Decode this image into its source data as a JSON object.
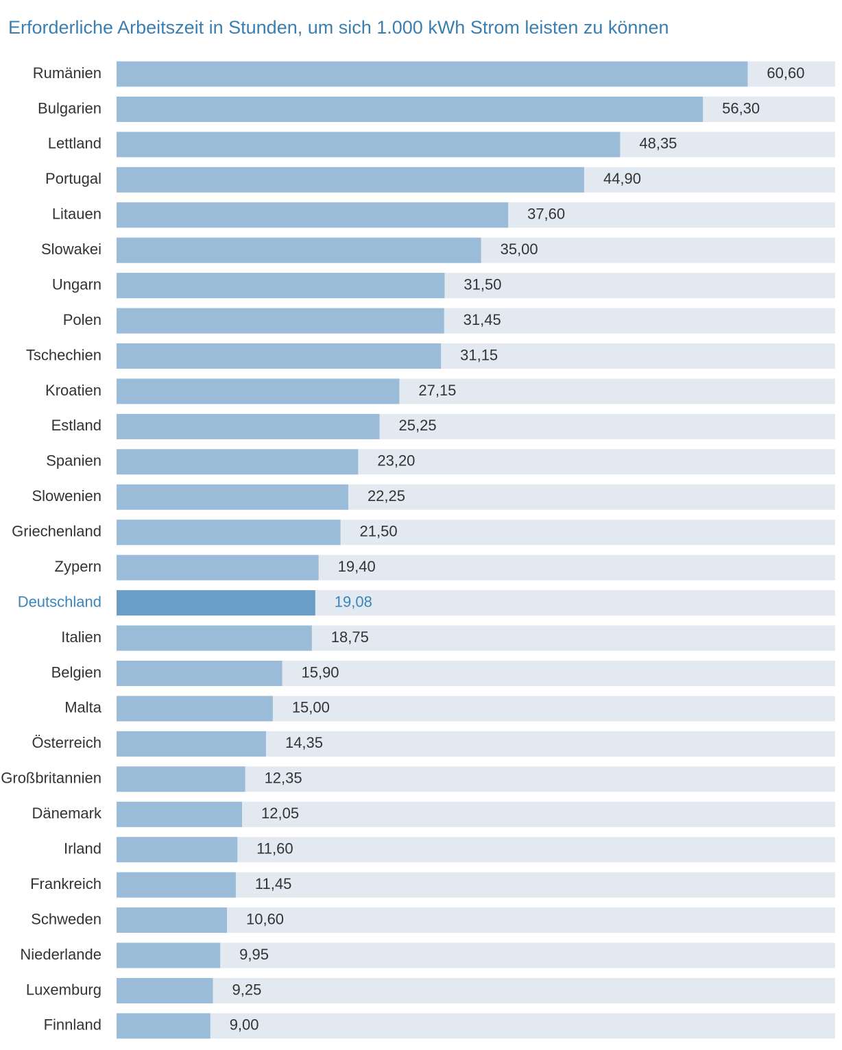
{
  "chart_data": {
    "type": "barh",
    "title": "Erforderliche Arbeitszeit in Stunden, um sich 1.000 kWh Strom leisten zu können",
    "categories": [
      "Rumänien",
      "Bulgarien",
      "Lettland",
      "Portugal",
      "Litauen",
      "Slowakei",
      "Ungarn",
      "Polen",
      "Tschechien",
      "Kroatien",
      "Estland",
      "Spanien",
      "Slowenien",
      "Griechenland",
      "Zypern",
      "Deutschland",
      "Italien",
      "Belgien",
      "Malta",
      "Österreich",
      "Großbritannien",
      "Dänemark",
      "Irland",
      "Frankreich",
      "Schweden",
      "Niederlande",
      "Luxemburg",
      "Finnland"
    ],
    "values": [
      60.6,
      56.3,
      48.35,
      44.9,
      37.6,
      35.0,
      31.5,
      31.45,
      31.15,
      27.15,
      25.25,
      23.2,
      22.25,
      21.5,
      19.4,
      19.08,
      18.75,
      15.9,
      15.0,
      14.35,
      12.35,
      12.05,
      11.6,
      11.45,
      10.6,
      9.95,
      9.25,
      9.0
    ],
    "value_labels": [
      "60,60",
      "56,30",
      "48,35",
      "44,90",
      "37,60",
      "35,00",
      "31,50",
      "31,45",
      "31,15",
      "27,15",
      "25,25",
      "23,20",
      "22,25",
      "21,50",
      "19,40",
      "19,08",
      "18,75",
      "15,90",
      "15,00",
      "14,35",
      "12,35",
      "12,05",
      "11,60",
      "11,45",
      "10,60",
      "9,95",
      "9,25",
      "9,00"
    ],
    "colors": [
      "#9bbcd9",
      "#9bbcd9",
      "#9bbcd9",
      "#9bbcd9",
      "#9bbcd9",
      "#9bbcd9",
      "#9bbcd9",
      "#9bbcd9",
      "#9bbcd9",
      "#9bbcd9",
      "#9bbcd9",
      "#9bbcd9",
      "#9bbcd9",
      "#9bbcd9",
      "#9bbcd9",
      "#6b9ec6",
      "#9bbcd9",
      "#9bbcd9",
      "#9bbcd9",
      "#9bbcd9",
      "#9bbcd9",
      "#9bbcd9",
      "#9bbcd9",
      "#9bbcd9",
      "#9bbcd9",
      "#9bbcd9",
      "#9bbcd9",
      "#9bbcd9"
    ],
    "label_colors": [
      "#333333",
      "#333333",
      "#333333",
      "#333333",
      "#333333",
      "#333333",
      "#333333",
      "#333333",
      "#333333",
      "#333333",
      "#333333",
      "#333333",
      "#333333",
      "#333333",
      "#333333",
      "#3a86bb",
      "#333333",
      "#333333",
      "#333333",
      "#333333",
      "#333333",
      "#333333",
      "#333333",
      "#333333",
      "#333333",
      "#333333",
      "#333333",
      "#333333"
    ],
    "track_color": "#e3e9f1",
    "xlim": [
      0,
      69
    ]
  }
}
